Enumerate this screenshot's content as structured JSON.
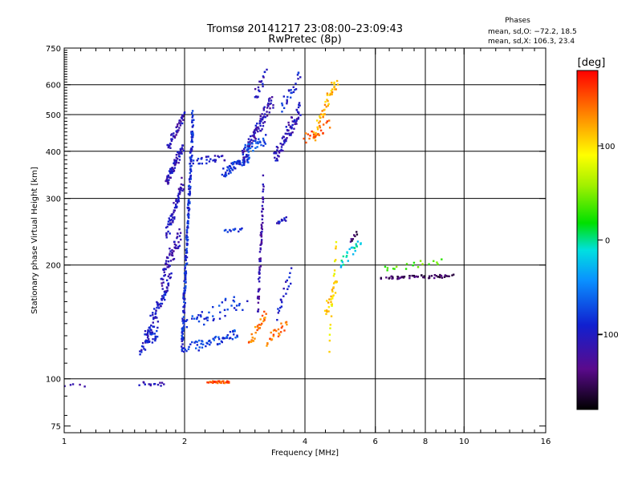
{
  "chart_data": {
    "type": "scatter",
    "title": "Tromsø 20141217 23:08:00–23:09:43",
    "subtitle": "RwPretec (8p)",
    "phase_stats": {
      "heading": "Phases",
      "line_o": "mean, sd,O: −72.2, 18.5",
      "line_x": "mean, sd,X: 106.3, 23.4"
    },
    "xlabel": "Frequency [MHz]",
    "ylabel": "Stationary phase Virtual Height [km]",
    "x_scale": "log",
    "y_scale": "log",
    "xlim": [
      1,
      16
    ],
    "ylim": [
      72,
      750
    ],
    "x_ticks": [
      1,
      2,
      4,
      6,
      8,
      10,
      16
    ],
    "x_tick_labels": [
      "1",
      "2",
      "4",
      "6",
      "8",
      "10",
      "16"
    ],
    "x_minor_ticks": [
      1.1,
      1.2,
      1.3,
      1.4,
      1.5,
      1.6,
      1.7,
      1.8,
      1.9,
      2.25,
      2.5,
      2.75,
      3,
      3.25,
      3.5,
      3.75,
      4.5,
      5,
      5.5,
      6.5,
      7,
      7.5,
      8.5,
      9,
      9.5,
      11,
      12,
      13,
      14,
      15
    ],
    "y_ticks": [
      75,
      100,
      200,
      300,
      400,
      500,
      600,
      750
    ],
    "y_tick_labels": [
      "75",
      "100",
      "200",
      "300",
      "400",
      "500",
      "600",
      "750"
    ],
    "grid_x": [
      2,
      4,
      6,
      8,
      10
    ],
    "grid_y": [
      100,
      200,
      300,
      400,
      500,
      600
    ],
    "grid": true,
    "colorbar": {
      "label": "[deg]",
      "range": [
        -180,
        180
      ],
      "ticks": [
        100,
        0,
        -100
      ],
      "tick_labels": [
        "100",
        "0",
        "−100"
      ]
    },
    "series": [
      {
        "traces": [
          {
            "f0": 1.0,
            "f1": 1.12,
            "h0": 96,
            "h1": 96,
            "n": 5,
            "jitter": 0.01,
            "phase": -120
          },
          {
            "f0": 1.55,
            "f1": 1.78,
            "h0": 97,
            "h1": 97,
            "n": 14,
            "jitter": 0.015,
            "phase": -110
          },
          {
            "f0": 1.55,
            "f1": 1.72,
            "h0": 120,
            "h1": 135,
            "n": 40,
            "jitter": 0.05,
            "phase": -95
          },
          {
            "f0": 1.6,
            "f1": 1.85,
            "h0": 130,
            "h1": 185,
            "n": 70,
            "jitter": 0.05,
            "phase": -100
          },
          {
            "f0": 1.75,
            "f1": 1.95,
            "h0": 185,
            "h1": 240,
            "n": 60,
            "jitter": 0.05,
            "phase": -112
          },
          {
            "f0": 1.8,
            "f1": 1.98,
            "h0": 240,
            "h1": 330,
            "n": 60,
            "jitter": 0.04,
            "phase": -108
          },
          {
            "f0": 1.8,
            "f1": 1.98,
            "h0": 330,
            "h1": 410,
            "n": 70,
            "jitter": 0.03,
            "phase": -105
          },
          {
            "f0": 1.82,
            "f1": 2.0,
            "h0": 410,
            "h1": 500,
            "n": 50,
            "jitter": 0.03,
            "phase": -110
          },
          {
            "f0": 1.97,
            "f1": 2.1,
            "h0": 120,
            "h1": 500,
            "n": 220,
            "jitter": 0.05,
            "phase": -88
          },
          {
            "f0": 2.0,
            "f1": 2.75,
            "h0": 120,
            "h1": 132,
            "n": 60,
            "jitter": 0.03,
            "phase": -78
          },
          {
            "f0": 2.0,
            "f1": 2.8,
            "h0": 140,
            "h1": 160,
            "n": 45,
            "jitter": 0.05,
            "phase": -82
          },
          {
            "f0": 2.3,
            "f1": 2.6,
            "h0": 98,
            "h1": 98,
            "n": 30,
            "jitter": 0.006,
            "phase": 150
          },
          {
            "f0": 2.1,
            "f1": 2.5,
            "h0": 375,
            "h1": 385,
            "n": 30,
            "jitter": 0.02,
            "phase": -98
          },
          {
            "f0": 2.5,
            "f1": 2.9,
            "h0": 350,
            "h1": 385,
            "n": 60,
            "jitter": 0.025,
            "phase": -88
          },
          {
            "f0": 2.5,
            "f1": 2.8,
            "h0": 245,
            "h1": 248,
            "n": 12,
            "jitter": 0.01,
            "phase": -78
          },
          {
            "f0": 2.8,
            "f1": 3.3,
            "h0": 385,
            "h1": 540,
            "n": 90,
            "jitter": 0.04,
            "phase": -110
          },
          {
            "f0": 2.8,
            "f1": 3.2,
            "h0": 400,
            "h1": 430,
            "n": 30,
            "jitter": 0.03,
            "phase": -70
          },
          {
            "f0": 3.0,
            "f1": 3.2,
            "h0": 560,
            "h1": 650,
            "n": 18,
            "jitter": 0.04,
            "phase": -105
          },
          {
            "f0": 3.35,
            "f1": 3.9,
            "h0": 380,
            "h1": 520,
            "n": 80,
            "jitter": 0.04,
            "phase": -108
          },
          {
            "f0": 3.5,
            "f1": 3.9,
            "h0": 520,
            "h1": 640,
            "n": 25,
            "jitter": 0.04,
            "phase": -92
          },
          {
            "f0": 3.05,
            "f1": 3.15,
            "h0": 150,
            "h1": 320,
            "n": 70,
            "jitter": 0.08,
            "phase": -120
          },
          {
            "f0": 2.9,
            "f1": 3.2,
            "h0": 125,
            "h1": 148,
            "n": 28,
            "jitter": 0.03,
            "phase": 140
          },
          {
            "f0": 3.2,
            "f1": 3.6,
            "h0": 125,
            "h1": 140,
            "n": 25,
            "jitter": 0.03,
            "phase": 140
          },
          {
            "f0": 3.4,
            "f1": 3.6,
            "h0": 258,
            "h1": 265,
            "n": 12,
            "jitter": 0.01,
            "phase": -100
          },
          {
            "f0": 3.4,
            "f1": 3.7,
            "h0": 145,
            "h1": 190,
            "n": 20,
            "jitter": 0.05,
            "phase": -98
          },
          {
            "f0": 4.2,
            "f1": 4.8,
            "h0": 440,
            "h1": 620,
            "n": 55,
            "jitter": 0.04,
            "phase": 120
          },
          {
            "f0": 4.0,
            "f1": 4.6,
            "h0": 430,
            "h1": 470,
            "n": 22,
            "jitter": 0.03,
            "phase": 150
          },
          {
            "f0": 4.5,
            "f1": 4.8,
            "h0": 150,
            "h1": 180,
            "n": 22,
            "jitter": 0.04,
            "phase": 110
          },
          {
            "f0": 4.6,
            "f1": 4.8,
            "h0": 120,
            "h1": 240,
            "n": 20,
            "jitter": 0.05,
            "phase": 95
          },
          {
            "f0": 4.9,
            "f1": 5.5,
            "h0": 200,
            "h1": 235,
            "n": 25,
            "jitter": 0.03,
            "phase": -15
          },
          {
            "f0": 5.2,
            "f1": 5.4,
            "h0": 230,
            "h1": 245,
            "n": 8,
            "jitter": 0.02,
            "phase": -150
          },
          {
            "f0": 6.3,
            "f1": 9.4,
            "h0": 185,
            "h1": 187,
            "n": 55,
            "jitter": 0.01,
            "phase": -150
          },
          {
            "f0": 6.3,
            "f1": 8.8,
            "h0": 195,
            "h1": 205,
            "n": 18,
            "jitter": 0.02,
            "phase": 40
          }
        ]
      }
    ]
  }
}
